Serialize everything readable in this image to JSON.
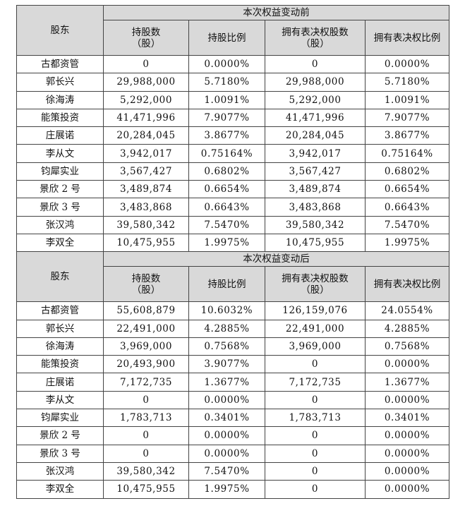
{
  "sections": [
    {
      "title": "本次权益变动前",
      "col_header_shareholder": "股东",
      "col_header_shares_line1": "持股数",
      "col_header_shares_line2": "（股）",
      "col_header_ratio": "持股比例",
      "col_header_vote_shares_line1": "拥有表决权股数",
      "col_header_vote_shares_line2": "（股）",
      "col_header_vote_ratio": "拥有表决权比例",
      "rows": [
        {
          "name": "古都资管",
          "shares": "0",
          "ratio": "0.0000%",
          "vote_shares": "0",
          "vote_ratio": "0.0000%"
        },
        {
          "name": "郭长兴",
          "shares": "29,988,000",
          "ratio": "5.7180%",
          "vote_shares": "29,988,000",
          "vote_ratio": "5.7180%"
        },
        {
          "name": "徐海涛",
          "shares": "5,292,000",
          "ratio": "1.0091%",
          "vote_shares": "5,292,000",
          "vote_ratio": "1.0091%"
        },
        {
          "name": "能策投资",
          "shares": "41,471,996",
          "ratio": "7.9077%",
          "vote_shares": "41,471,996",
          "vote_ratio": "7.9077%"
        },
        {
          "name": "庄展诺",
          "shares": "20,284,045",
          "ratio": "3.8677%",
          "vote_shares": "20,284,045",
          "vote_ratio": "3.8677%"
        },
        {
          "name": "李从文",
          "shares": "3,942,017",
          "ratio": "0.75164%",
          "vote_shares": "3,942,017",
          "vote_ratio": "0.75164%"
        },
        {
          "name": "钧犀实业",
          "shares": "3,567,427",
          "ratio": "0.6802%",
          "vote_shares": "3,567,427",
          "vote_ratio": "0.6802%"
        },
        {
          "name": "景欣 2 号",
          "shares": "3,489,874",
          "ratio": "0.6654%",
          "vote_shares": "3,489,874",
          "vote_ratio": "0.6654%"
        },
        {
          "name": "景欣 3 号",
          "shares": "3,483,868",
          "ratio": "0.6643%",
          "vote_shares": "3,483,868",
          "vote_ratio": "0.6643%"
        },
        {
          "name": "张汉鸿",
          "shares": "39,580,342",
          "ratio": "7.5470%",
          "vote_shares": "39,580,342",
          "vote_ratio": "7.5470%"
        },
        {
          "name": "李双全",
          "shares": "10,475,955",
          "ratio": "1.9975%",
          "vote_shares": "10,475,955",
          "vote_ratio": "1.9975%"
        }
      ]
    },
    {
      "title": "本次权益变动后",
      "col_header_shareholder": "股东",
      "col_header_shares_line1": "持股数",
      "col_header_shares_line2": "（股）",
      "col_header_ratio": "持股比例",
      "col_header_vote_shares_line1": "拥有表决权股数",
      "col_header_vote_shares_line2": "（股）",
      "col_header_vote_ratio": "拥有表决权比例",
      "rows": [
        {
          "name": "古都资管",
          "shares": "55,608,879",
          "ratio": "10.6032%",
          "vote_shares": "126,159,076",
          "vote_ratio": "24.0554%"
        },
        {
          "name": "郭长兴",
          "shares": "22,491,000",
          "ratio": "4.2885%",
          "vote_shares": "22,491,000",
          "vote_ratio": "4.2885%"
        },
        {
          "name": "徐海涛",
          "shares": "3,969,000",
          "ratio": "0.7568%",
          "vote_shares": "3,969,000",
          "vote_ratio": "0.7568%"
        },
        {
          "name": "能策投资",
          "shares": "20,493,900",
          "ratio": "3.9077%",
          "vote_shares": "0",
          "vote_ratio": "0.0000%"
        },
        {
          "name": "庄展诺",
          "shares": "7,172,735",
          "ratio": "1.3677%",
          "vote_shares": "7,172,735",
          "vote_ratio": "1.3677%"
        },
        {
          "name": "李从文",
          "shares": "0",
          "ratio": "0.0000%",
          "vote_shares": "0",
          "vote_ratio": "0.0000%"
        },
        {
          "name": "钧犀实业",
          "shares": "1,783,713",
          "ratio": "0.3401%",
          "vote_shares": "1,783,713",
          "vote_ratio": "0.3401%"
        },
        {
          "name": "景欣 2 号",
          "shares": "0",
          "ratio": "0.0000%",
          "vote_shares": "0",
          "vote_ratio": "0.0000%"
        },
        {
          "name": "景欣 3 号",
          "shares": "0",
          "ratio": "0.0000%",
          "vote_shares": "0",
          "vote_ratio": "0.0000%"
        },
        {
          "name": "张汉鸿",
          "shares": "39,580,342",
          "ratio": "7.5470%",
          "vote_shares": "0",
          "vote_ratio": "0.0000%"
        },
        {
          "name": "李双全",
          "shares": "10,475,955",
          "ratio": "1.9975%",
          "vote_shares": "0",
          "vote_ratio": "0.0000%"
        }
      ]
    }
  ]
}
